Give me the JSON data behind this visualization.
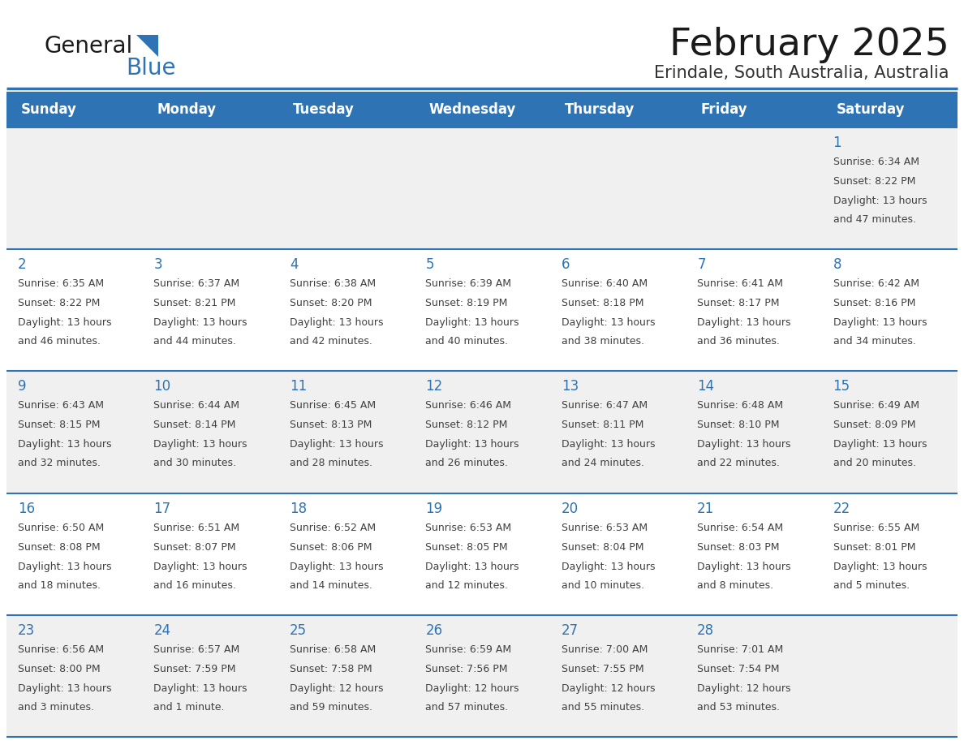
{
  "title": "February 2025",
  "subtitle": "Erindale, South Australia, Australia",
  "days_of_week": [
    "Sunday",
    "Monday",
    "Tuesday",
    "Wednesday",
    "Thursday",
    "Friday",
    "Saturday"
  ],
  "header_bg": "#2E74B5",
  "header_text_color": "#FFFFFF",
  "cell_bg_even": "#F0F0F0",
  "cell_bg_odd": "#FFFFFF",
  "cell_text_color": "#404040",
  "day_num_color": "#2E74B5",
  "separator_color": "#2E74B5",
  "logo_general_color": "#1A1A1A",
  "logo_blue_color": "#2E74B5",
  "title_color": "#1A1A1A",
  "subtitle_color": "#333333",
  "calendar_data": [
    [
      null,
      null,
      null,
      null,
      null,
      null,
      {
        "day": 1,
        "sunrise": "6:34 AM",
        "sunset": "8:22 PM",
        "daylight_line1": "Daylight: 13 hours",
        "daylight_line2": "and 47 minutes."
      }
    ],
    [
      {
        "day": 2,
        "sunrise": "6:35 AM",
        "sunset": "8:22 PM",
        "daylight_line1": "Daylight: 13 hours",
        "daylight_line2": "and 46 minutes."
      },
      {
        "day": 3,
        "sunrise": "6:37 AM",
        "sunset": "8:21 PM",
        "daylight_line1": "Daylight: 13 hours",
        "daylight_line2": "and 44 minutes."
      },
      {
        "day": 4,
        "sunrise": "6:38 AM",
        "sunset": "8:20 PM",
        "daylight_line1": "Daylight: 13 hours",
        "daylight_line2": "and 42 minutes."
      },
      {
        "day": 5,
        "sunrise": "6:39 AM",
        "sunset": "8:19 PM",
        "daylight_line1": "Daylight: 13 hours",
        "daylight_line2": "and 40 minutes."
      },
      {
        "day": 6,
        "sunrise": "6:40 AM",
        "sunset": "8:18 PM",
        "daylight_line1": "Daylight: 13 hours",
        "daylight_line2": "and 38 minutes."
      },
      {
        "day": 7,
        "sunrise": "6:41 AM",
        "sunset": "8:17 PM",
        "daylight_line1": "Daylight: 13 hours",
        "daylight_line2": "and 36 minutes."
      },
      {
        "day": 8,
        "sunrise": "6:42 AM",
        "sunset": "8:16 PM",
        "daylight_line1": "Daylight: 13 hours",
        "daylight_line2": "and 34 minutes."
      }
    ],
    [
      {
        "day": 9,
        "sunrise": "6:43 AM",
        "sunset": "8:15 PM",
        "daylight_line1": "Daylight: 13 hours",
        "daylight_line2": "and 32 minutes."
      },
      {
        "day": 10,
        "sunrise": "6:44 AM",
        "sunset": "8:14 PM",
        "daylight_line1": "Daylight: 13 hours",
        "daylight_line2": "and 30 minutes."
      },
      {
        "day": 11,
        "sunrise": "6:45 AM",
        "sunset": "8:13 PM",
        "daylight_line1": "Daylight: 13 hours",
        "daylight_line2": "and 28 minutes."
      },
      {
        "day": 12,
        "sunrise": "6:46 AM",
        "sunset": "8:12 PM",
        "daylight_line1": "Daylight: 13 hours",
        "daylight_line2": "and 26 minutes."
      },
      {
        "day": 13,
        "sunrise": "6:47 AM",
        "sunset": "8:11 PM",
        "daylight_line1": "Daylight: 13 hours",
        "daylight_line2": "and 24 minutes."
      },
      {
        "day": 14,
        "sunrise": "6:48 AM",
        "sunset": "8:10 PM",
        "daylight_line1": "Daylight: 13 hours",
        "daylight_line2": "and 22 minutes."
      },
      {
        "day": 15,
        "sunrise": "6:49 AM",
        "sunset": "8:09 PM",
        "daylight_line1": "Daylight: 13 hours",
        "daylight_line2": "and 20 minutes."
      }
    ],
    [
      {
        "day": 16,
        "sunrise": "6:50 AM",
        "sunset": "8:08 PM",
        "daylight_line1": "Daylight: 13 hours",
        "daylight_line2": "and 18 minutes."
      },
      {
        "day": 17,
        "sunrise": "6:51 AM",
        "sunset": "8:07 PM",
        "daylight_line1": "Daylight: 13 hours",
        "daylight_line2": "and 16 minutes."
      },
      {
        "day": 18,
        "sunrise": "6:52 AM",
        "sunset": "8:06 PM",
        "daylight_line1": "Daylight: 13 hours",
        "daylight_line2": "and 14 minutes."
      },
      {
        "day": 19,
        "sunrise": "6:53 AM",
        "sunset": "8:05 PM",
        "daylight_line1": "Daylight: 13 hours",
        "daylight_line2": "and 12 minutes."
      },
      {
        "day": 20,
        "sunrise": "6:53 AM",
        "sunset": "8:04 PM",
        "daylight_line1": "Daylight: 13 hours",
        "daylight_line2": "and 10 minutes."
      },
      {
        "day": 21,
        "sunrise": "6:54 AM",
        "sunset": "8:03 PM",
        "daylight_line1": "Daylight: 13 hours",
        "daylight_line2": "and 8 minutes."
      },
      {
        "day": 22,
        "sunrise": "6:55 AM",
        "sunset": "8:01 PM",
        "daylight_line1": "Daylight: 13 hours",
        "daylight_line2": "and 5 minutes."
      }
    ],
    [
      {
        "day": 23,
        "sunrise": "6:56 AM",
        "sunset": "8:00 PM",
        "daylight_line1": "Daylight: 13 hours",
        "daylight_line2": "and 3 minutes."
      },
      {
        "day": 24,
        "sunrise": "6:57 AM",
        "sunset": "7:59 PM",
        "daylight_line1": "Daylight: 13 hours",
        "daylight_line2": "and 1 minute."
      },
      {
        "day": 25,
        "sunrise": "6:58 AM",
        "sunset": "7:58 PM",
        "daylight_line1": "Daylight: 12 hours",
        "daylight_line2": "and 59 minutes."
      },
      {
        "day": 26,
        "sunrise": "6:59 AM",
        "sunset": "7:56 PM",
        "daylight_line1": "Daylight: 12 hours",
        "daylight_line2": "and 57 minutes."
      },
      {
        "day": 27,
        "sunrise": "7:00 AM",
        "sunset": "7:55 PM",
        "daylight_line1": "Daylight: 12 hours",
        "daylight_line2": "and 55 minutes."
      },
      {
        "day": 28,
        "sunrise": "7:01 AM",
        "sunset": "7:54 PM",
        "daylight_line1": "Daylight: 12 hours",
        "daylight_line2": "and 53 minutes."
      },
      null
    ]
  ]
}
